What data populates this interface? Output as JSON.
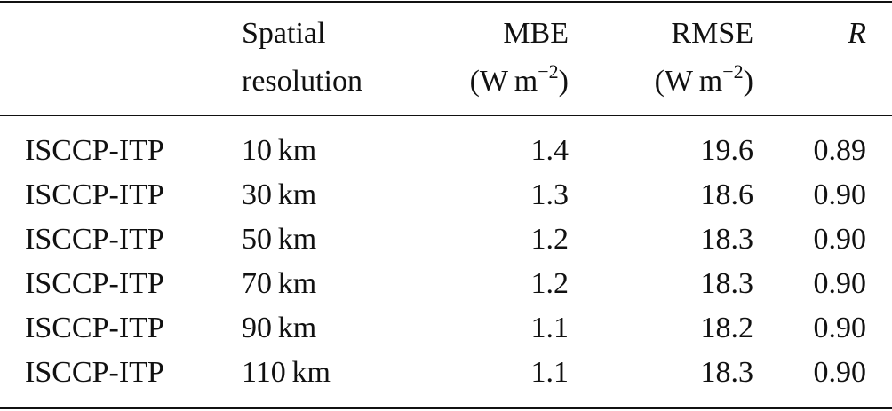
{
  "table": {
    "header": [
      {
        "lines": [
          [
            ""
          ]
        ]
      },
      {
        "lines": [
          [
            "Spatial"
          ],
          [
            "resolution"
          ]
        ]
      },
      {
        "lines": [
          [
            "MBE"
          ],
          [
            "(W m",
            "−2",
            ")"
          ]
        ]
      },
      {
        "lines": [
          [
            "RMSE"
          ],
          [
            "(W m",
            "−2",
            ")"
          ]
        ]
      },
      {
        "lines": [
          [
            "R"
          ]
        ]
      }
    ],
    "rows": [
      [
        "ISCCP-ITP",
        "10 km",
        "1.4",
        "19.6",
        "0.89"
      ],
      [
        "ISCCP-ITP",
        "30 km",
        "1.3",
        "18.6",
        "0.90"
      ],
      [
        "ISCCP-ITP",
        "50 km",
        "1.2",
        "18.3",
        "0.90"
      ],
      [
        "ISCCP-ITP",
        "70 km",
        "1.2",
        "18.3",
        "0.90"
      ],
      [
        "ISCCP-ITP",
        "90 km",
        "1.1",
        "18.2",
        "0.90"
      ],
      [
        "ISCCP-ITP",
        "110 km",
        "1.1",
        "18.3",
        "0.90"
      ]
    ]
  }
}
